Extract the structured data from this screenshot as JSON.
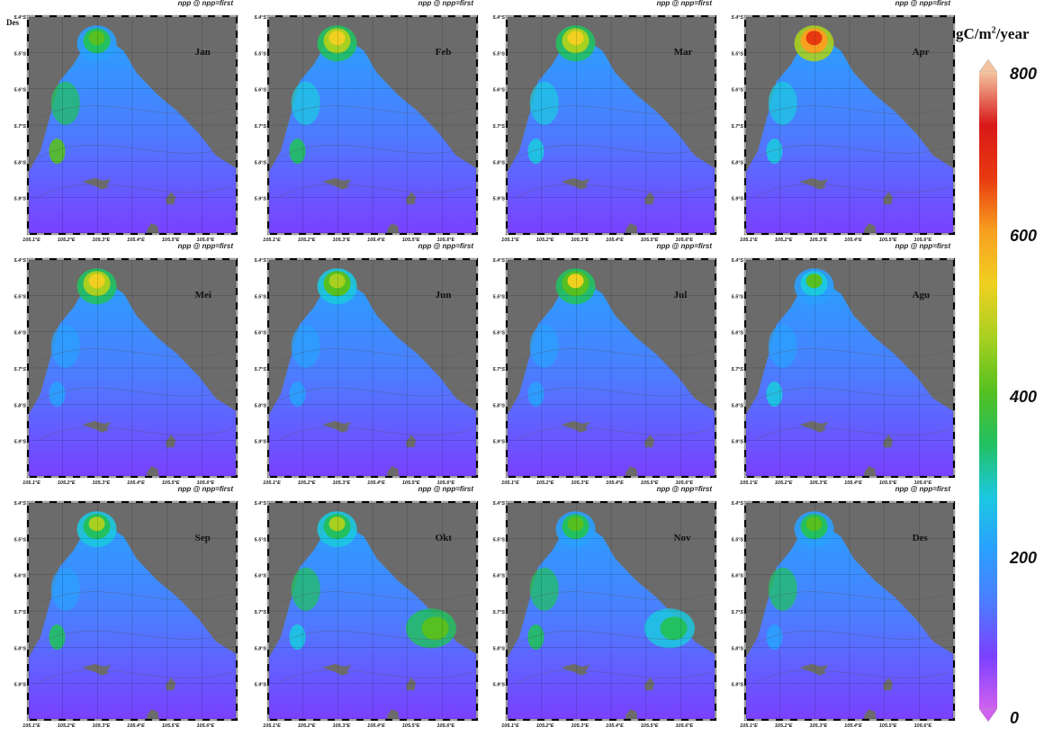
{
  "panel_title": "npp @ npp=first",
  "extra_label": "Des",
  "lat_ticks": [
    "5.4°S",
    "5.5°S",
    "5.6°S",
    "5.7°S",
    "5.8°S",
    "5.9°S"
  ],
  "lon_ticks": [
    "105.1°E",
    "105.2°E",
    "105.3°E",
    "105.4°E",
    "105.5°E",
    "105.6°E"
  ],
  "months": [
    {
      "name": "Jan",
      "peak": 430,
      "west": 300,
      "sw": 420,
      "bg": 160,
      "east": 0
    },
    {
      "name": "Feb",
      "peak": 540,
      "west": 290,
      "sw": 300,
      "bg": 150,
      "east": 0
    },
    {
      "name": "Mar",
      "peak": 530,
      "west": 280,
      "sw": 290,
      "bg": 150,
      "east": 0
    },
    {
      "name": "Apr",
      "peak": 680,
      "west": 270,
      "sw": 240,
      "bg": 150,
      "east": 0
    },
    {
      "name": "Mei",
      "peak": 560,
      "west": 200,
      "sw": 220,
      "bg": 160,
      "east": 0
    },
    {
      "name": "Jun",
      "peak": 480,
      "west": 210,
      "sw": 220,
      "bg": 150,
      "east": 0
    },
    {
      "name": "Jul",
      "peak": 520,
      "west": 200,
      "sw": 200,
      "bg": 140,
      "east": 0
    },
    {
      "name": "Agu",
      "peak": 380,
      "west": 200,
      "sw": 240,
      "bg": 160,
      "east": 0
    },
    {
      "name": "Sep",
      "peak": 450,
      "west": 220,
      "sw": 300,
      "bg": 150,
      "east": 0
    },
    {
      "name": "Okt",
      "peak": 440,
      "west": 300,
      "sw": 260,
      "bg": 140,
      "east": 380
    },
    {
      "name": "Nov",
      "peak": 420,
      "west": 320,
      "sw": 340,
      "bg": 150,
      "east": 330
    },
    {
      "name": "Des",
      "peak": 400,
      "west": 300,
      "sw": 220,
      "bg": 140,
      "east": 0
    }
  ],
  "colorbar": {
    "title": "gC/m",
    "title_sup": "2",
    "title_suffix": "/year",
    "labels": [
      "800",
      "600",
      "400",
      "200",
      "0"
    ],
    "min": 0,
    "max": 800,
    "stops": [
      "#d060f0",
      "#7a40ff",
      "#4d7cff",
      "#2aa0ff",
      "#1cc8e0",
      "#22c060",
      "#56c020",
      "#a8d020",
      "#f0d020",
      "#f8a020",
      "#e83a10",
      "#d81818",
      "#f4c4a0"
    ]
  }
}
